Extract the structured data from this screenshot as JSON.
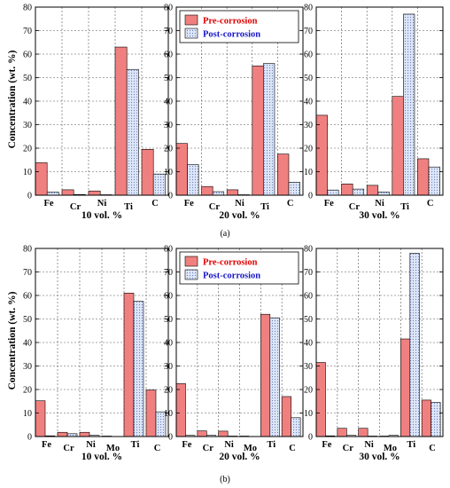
{
  "ylabel": "Concentration (wt. %)",
  "figure_labels": [
    "(a)",
    "(b)"
  ],
  "legend": {
    "pre_label": "Pre-corrosion",
    "post_label": "Post-corrosion"
  },
  "colors": {
    "pre_fill": "#f08080",
    "post_fill": "#dde6f7",
    "post_dots": "#6a7fc0",
    "pre_text": "#e00000",
    "post_text": "#1515c8"
  },
  "chart_data": [
    {
      "type": "bar",
      "row": "a",
      "title": "10 vol. %",
      "categories": [
        "Fe",
        "Cr",
        "Ni",
        "Ti",
        "C"
      ],
      "series": [
        {
          "name": "Pre-corrosion",
          "values": [
            13.8,
            2.3,
            1.8,
            63,
            19.5
          ]
        },
        {
          "name": "Post-corrosion",
          "values": [
            1.3,
            0.3,
            0.2,
            53.5,
            9
          ]
        }
      ],
      "ylim": [
        0,
        80
      ],
      "yticks": [
        0,
        10,
        20,
        30,
        40,
        50,
        60,
        70,
        80
      ],
      "grid": true,
      "legend": "none"
    },
    {
      "type": "bar",
      "row": "a",
      "title": "20 vol. %",
      "categories": [
        "Fe",
        "Cr",
        "Ni",
        "Ti",
        "C"
      ],
      "series": [
        {
          "name": "Pre-corrosion",
          "values": [
            22,
            3.7,
            2.3,
            55,
            17.5
          ]
        },
        {
          "name": "Post-corrosion",
          "values": [
            13,
            1.5,
            0.2,
            56,
            5.5
          ]
        }
      ],
      "ylim": [
        0,
        80
      ],
      "yticks": [
        0,
        10,
        20,
        30,
        40,
        50,
        60,
        70,
        80
      ],
      "grid": true,
      "legend": "top"
    },
    {
      "type": "bar",
      "row": "a",
      "title": "30 vol. %",
      "categories": [
        "Fe",
        "Cr",
        "Ni",
        "Ti",
        "C"
      ],
      "series": [
        {
          "name": "Pre-corrosion",
          "values": [
            34,
            4.8,
            4.2,
            42,
            15.5
          ]
        },
        {
          "name": "Post-corrosion",
          "values": [
            2.2,
            2.6,
            1.4,
            77,
            12
          ]
        }
      ],
      "ylim": [
        0,
        80
      ],
      "yticks": [
        0,
        10,
        20,
        30,
        40,
        50,
        60,
        70,
        80
      ],
      "grid": true,
      "legend": "none"
    },
    {
      "type": "bar",
      "row": "b",
      "title": "10 vol. %",
      "categories": [
        "Fe",
        "Cr",
        "Ni",
        "Mo",
        "Ti",
        "C"
      ],
      "series": [
        {
          "name": "Pre-corrosion",
          "values": [
            15.2,
            1.8,
            1.8,
            0.2,
            61,
            19.8
          ]
        },
        {
          "name": "Post-corrosion",
          "values": [
            0.3,
            1.2,
            0.5,
            0,
            57.5,
            10.5
          ]
        }
      ],
      "ylim": [
        0,
        80
      ],
      "yticks": [
        0,
        10,
        20,
        30,
        40,
        50,
        60,
        70,
        80
      ],
      "grid": true,
      "legend": "none"
    },
    {
      "type": "bar",
      "row": "b",
      "title": "20 vol. %",
      "categories": [
        "Fe",
        "Cr",
        "Ni",
        "Mo",
        "Ti",
        "C"
      ],
      "series": [
        {
          "name": "Pre-corrosion",
          "values": [
            22.5,
            2.4,
            2.3,
            0.2,
            52,
            17
          ]
        },
        {
          "name": "Post-corrosion",
          "values": [
            0.5,
            0.5,
            0.2,
            0,
            50.5,
            8
          ]
        }
      ],
      "ylim": [
        0,
        80
      ],
      "yticks": [
        0,
        10,
        20,
        30,
        40,
        50,
        60,
        70,
        80
      ],
      "grid": true,
      "legend": "top"
    },
    {
      "type": "bar",
      "row": "b",
      "title": "30 vol. %",
      "categories": [
        "Fe",
        "Cr",
        "Ni",
        "Mo",
        "Ti",
        "C"
      ],
      "series": [
        {
          "name": "Pre-corrosion",
          "values": [
            31.5,
            3.5,
            3.5,
            0.2,
            41.5,
            15.5
          ]
        },
        {
          "name": "Post-corrosion",
          "values": [
            0.3,
            0.5,
            0.2,
            0.5,
            78,
            14.5
          ]
        }
      ],
      "ylim": [
        0,
        80
      ],
      "yticks": [
        0,
        10,
        20,
        30,
        40,
        50,
        60,
        70,
        80
      ],
      "grid": true,
      "legend": "none"
    }
  ]
}
